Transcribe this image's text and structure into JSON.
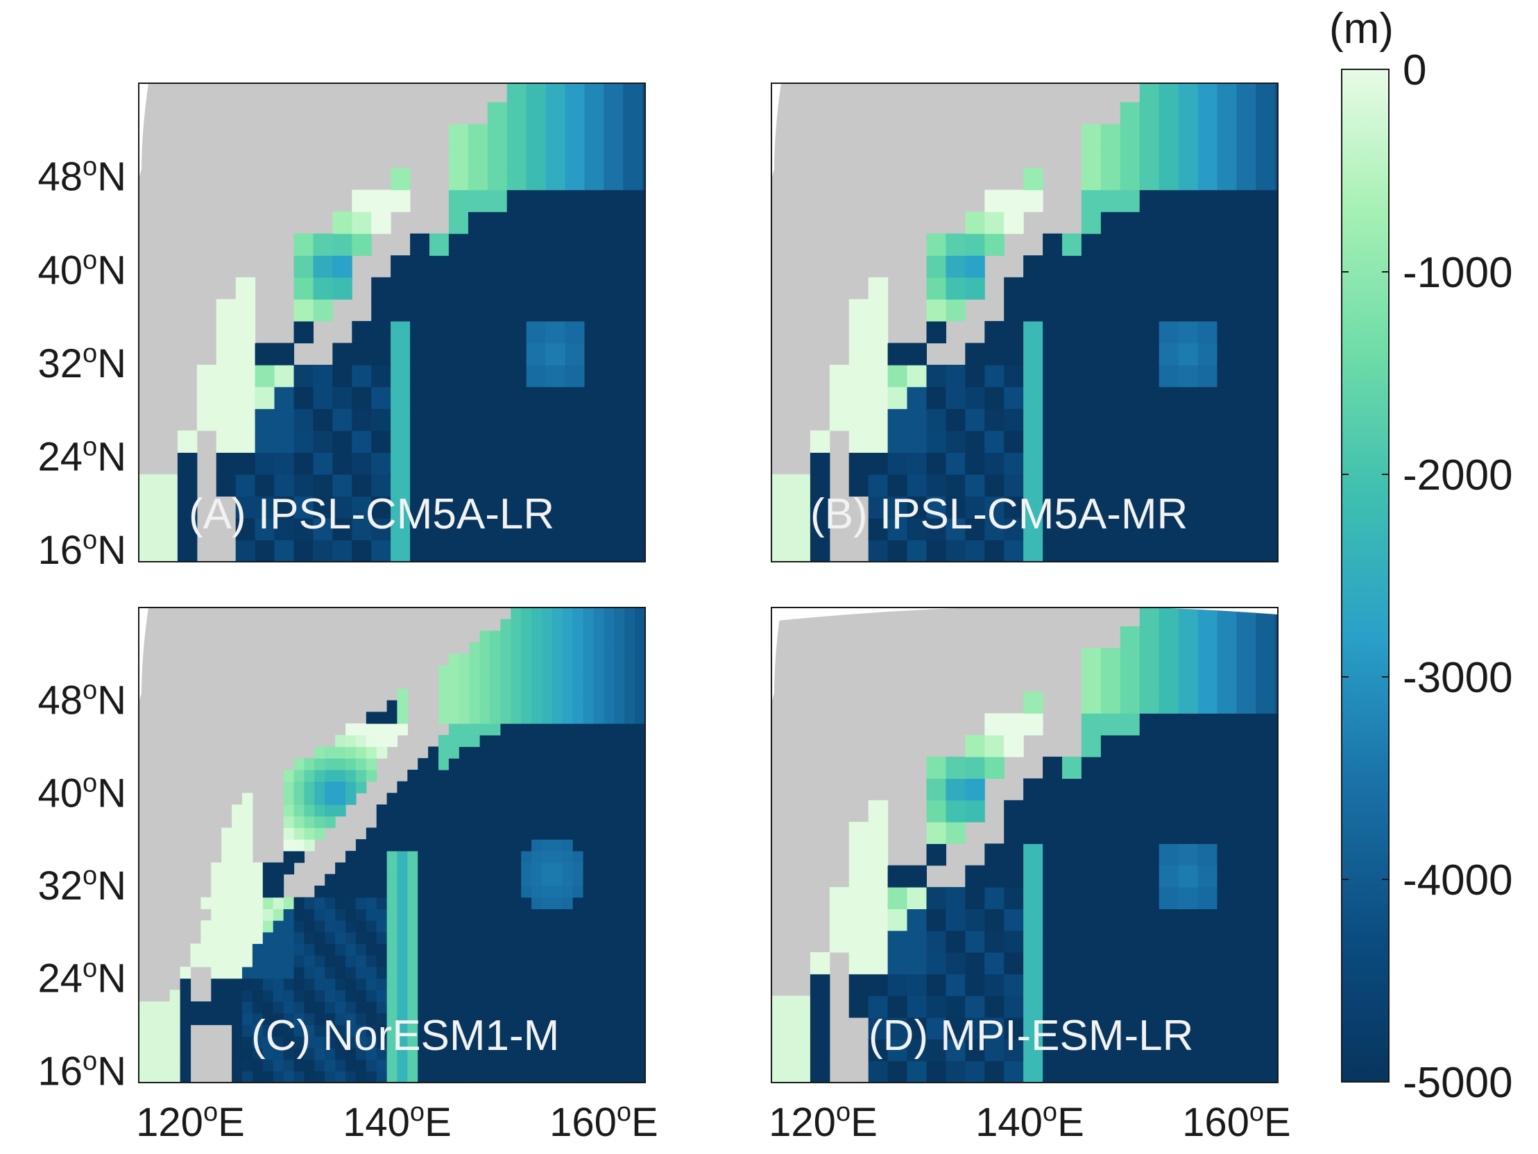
{
  "figure": {
    "colorbar": {
      "unit": "(m)",
      "ticks": [
        {
          "label": "0",
          "value": 0
        },
        {
          "label": "-1000",
          "value": -1000
        },
        {
          "label": "-2000",
          "value": -2000
        },
        {
          "label": "-3000",
          "value": -3000
        },
        {
          "label": "-4000",
          "value": -4000
        },
        {
          "label": "-5000",
          "value": -5000
        }
      ],
      "range": [
        -5000,
        0
      ],
      "colors": [
        "#07355e",
        "#0b4c80",
        "#1a73a8",
        "#2aa0c8",
        "#3fbfb0",
        "#6fdca8",
        "#a6f0b4",
        "#e8fbe6"
      ]
    },
    "axes": {
      "lon_ticks": [
        {
          "deg": "120",
          "suffix": "E",
          "value": 120
        },
        {
          "deg": "140",
          "suffix": "E",
          "value": 140
        },
        {
          "deg": "160",
          "suffix": "E",
          "value": 160
        }
      ],
      "lat_ticks": [
        {
          "deg": "48",
          "suffix": "N",
          "value": 48
        },
        {
          "deg": "40",
          "suffix": "N",
          "value": 40
        },
        {
          "deg": "32",
          "suffix": "N",
          "value": 32
        },
        {
          "deg": "24",
          "suffix": "N",
          "value": 24
        },
        {
          "deg": "16",
          "suffix": "N",
          "value": 16
        }
      ],
      "degree_symbol": "o",
      "lon_range": [
        115,
        164
      ],
      "lat_range": [
        15,
        56
      ]
    },
    "panels": [
      {
        "id": "A",
        "label": "(A) IPSL-CM5A-LR",
        "resolution": "coarse"
      },
      {
        "id": "B",
        "label": "(B) IPSL-CM5A-MR",
        "resolution": "coarse"
      },
      {
        "id": "C",
        "label": "(C) NorESM1-M",
        "resolution": "fine"
      },
      {
        "id": "D",
        "label": "(D) MPI-ESM-LR",
        "resolution": "coarse"
      }
    ],
    "land_color": "#c8c8c8",
    "deep_color": "#07355e"
  }
}
